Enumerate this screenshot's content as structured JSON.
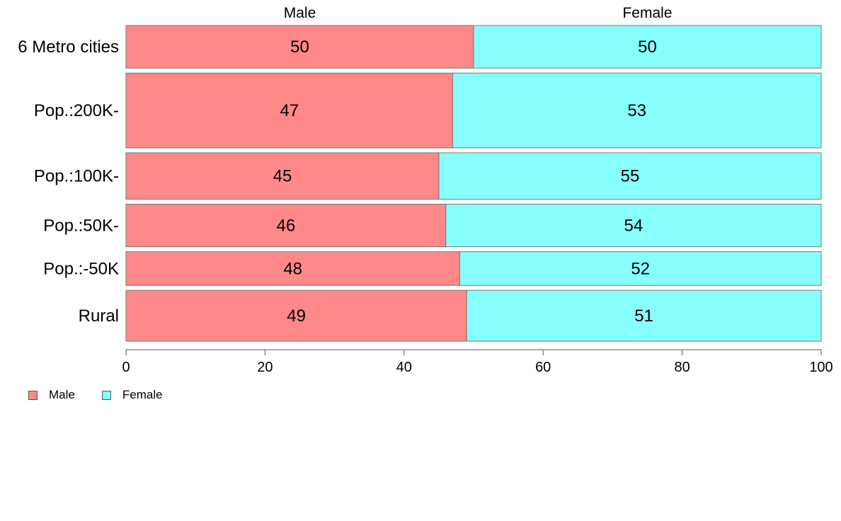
{
  "chart_data": {
    "type": "bar",
    "orientation": "horizontal",
    "stacked": true,
    "categories": [
      "6 Metro cities",
      "Pop.:200K-",
      "Pop.:100K-",
      "Pop.:50K-",
      "Pop.:-50K",
      "Rural"
    ],
    "series": [
      {
        "name": "Male",
        "color": "#ff8888",
        "values": [
          50,
          47,
          45,
          46,
          48,
          49
        ]
      },
      {
        "name": "Female",
        "color": "#88ffff",
        "values": [
          50,
          53,
          55,
          54,
          52,
          51
        ]
      }
    ],
    "top_labels": [
      "Male",
      "Female"
    ],
    "bar_widths_relative": [
      0.57,
      1.0,
      0.62,
      0.57,
      0.45,
      0.68
    ],
    "xlim": [
      0,
      100
    ],
    "xticks": [
      0,
      20,
      40,
      60,
      80,
      100
    ],
    "title": "",
    "xlabel": "",
    "ylabel": "",
    "grid": false,
    "legend_position": "bottom-left"
  },
  "legend": {
    "items": [
      {
        "label": "Male",
        "color": "#ff8888"
      },
      {
        "label": "Female",
        "color": "#88ffff"
      }
    ]
  }
}
